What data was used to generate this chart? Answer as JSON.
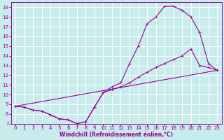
{
  "xlabel": "Windchill (Refroidissement éolien,°C)",
  "bg_color": "#c8ecec",
  "line_color": "#990099",
  "grid_color": "#ffffff",
  "xlim": [
    -0.5,
    23.5
  ],
  "ylim": [
    7,
    19.5
  ],
  "xticks": [
    0,
    1,
    2,
    3,
    4,
    5,
    6,
    7,
    8,
    9,
    10,
    11,
    12,
    13,
    14,
    15,
    16,
    17,
    18,
    19,
    20,
    21,
    22,
    23
  ],
  "yticks": [
    7,
    8,
    9,
    10,
    11,
    12,
    13,
    14,
    15,
    16,
    17,
    18,
    19
  ],
  "line1_x": [
    0,
    1,
    2,
    3,
    4,
    5,
    6,
    7,
    8,
    9,
    10,
    11,
    12,
    13,
    14,
    15,
    16,
    17,
    18,
    19,
    20,
    21,
    22,
    23
  ],
  "line1_y": [
    8.8,
    8.7,
    8.4,
    8.3,
    7.9,
    7.5,
    7.4,
    7.0,
    7.2,
    8.7,
    10.2,
    10.8,
    11.2,
    13.2,
    15.0,
    17.3,
    18.0,
    19.1,
    19.1,
    18.7,
    18.0,
    16.4,
    13.2,
    12.5
  ],
  "line2_x": [
    0,
    1,
    2,
    3,
    4,
    5,
    6,
    7,
    8,
    9,
    10,
    11,
    12,
    13,
    14,
    15,
    16,
    17,
    18,
    19,
    20,
    21,
    22,
    23
  ],
  "line2_y": [
    8.8,
    8.7,
    8.4,
    8.3,
    7.9,
    7.5,
    7.4,
    7.0,
    7.2,
    8.7,
    10.2,
    10.5,
    10.8,
    11.2,
    11.8,
    12.3,
    12.8,
    13.2,
    13.6,
    14.0,
    14.7,
    13.0,
    12.8,
    12.5
  ],
  "line3_x": [
    0,
    23
  ],
  "line3_y": [
    8.8,
    12.5
  ]
}
